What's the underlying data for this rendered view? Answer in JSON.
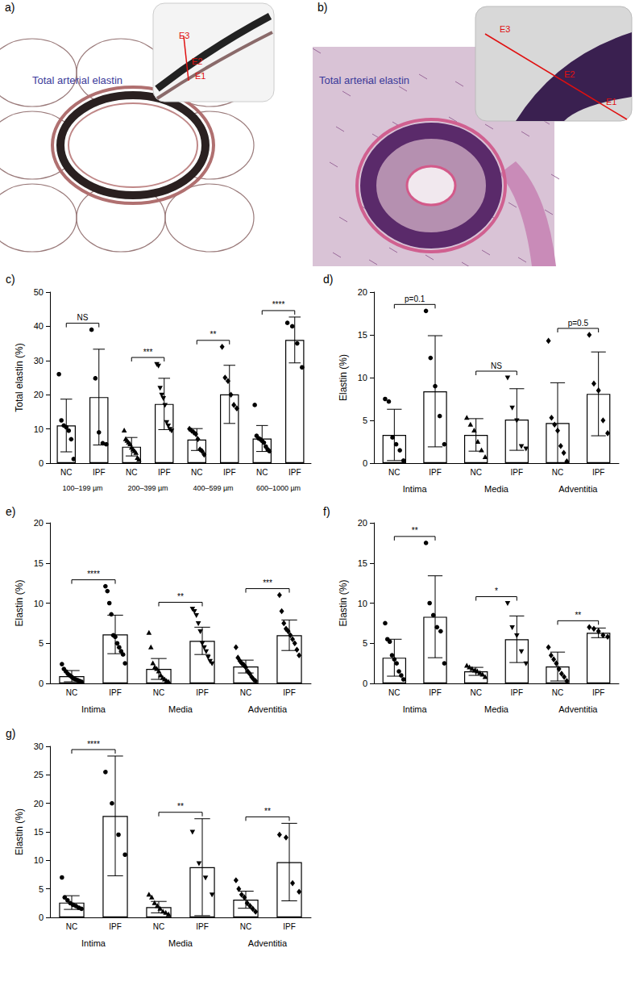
{
  "panels": [
    {
      "label": "a)",
      "caption": "Total arterial elastin",
      "inset_labels": [
        "E3",
        "E2",
        "E1"
      ]
    },
    {
      "label": "b)",
      "caption": "Total arterial elastin",
      "inset_labels": [
        "E3",
        "E2",
        "E1"
      ]
    }
  ],
  "chart_data": [
    {
      "type": "bar",
      "panel": "c)",
      "y_label": "Total elastin (%)",
      "categories": [
        "NC",
        "IPF",
        "NC",
        "IPF",
        "NC",
        "IPF",
        "NC",
        "IPF"
      ],
      "groups": [
        "100–199 µm",
        "200–399 µm",
        "400–599 µm",
        "600–1000 µm"
      ],
      "values": [
        11,
        19.3,
        4.8,
        17.3,
        6.9,
        20.1,
        7.2,
        36
      ],
      "error": [
        7.7,
        14,
        2.7,
        7.5,
        3.2,
        8.5,
        3.8,
        6.7
      ],
      "points": [
        [
          26,
          12.5,
          11,
          10.5,
          9.5,
          7,
          1.2
        ],
        [
          39,
          25,
          9,
          6,
          5.5
        ],
        [
          9.5,
          7,
          6.5,
          6,
          5.5,
          4.5,
          4,
          3.5,
          3,
          1.5,
          1
        ],
        [
          29,
          28.5,
          22,
          20,
          19,
          17,
          12,
          11,
          10,
          9.5
        ],
        [
          10,
          9.5,
          9,
          8.5,
          7,
          4,
          3.5,
          2.5
        ],
        [
          34,
          25,
          24,
          20,
          17,
          16
        ],
        [
          17,
          8,
          7.5,
          7,
          6.5,
          6,
          5,
          4,
          3.5
        ],
        [
          41,
          40,
          35,
          28
        ]
      ],
      "markers": [
        "circle",
        "circle",
        "triangle",
        "triangle-down",
        "diamond",
        "diamond",
        "circle",
        "circle"
      ],
      "significance": [
        "NS",
        "***",
        "**",
        "****"
      ],
      "color": "#ffffff",
      "ylim": [
        0,
        50
      ],
      "yticks": [
        0,
        10,
        20,
        30,
        40,
        50
      ],
      "grid": false
    },
    {
      "type": "bar",
      "panel": "d)",
      "y_label": "Elastin (%)",
      "categories": [
        "NC",
        "IPF",
        "NC",
        "IPF",
        "NC",
        "IPF"
      ],
      "groups": [
        "Intima",
        "Media",
        "Adventitia"
      ],
      "values": [
        3.3,
        8.4,
        3.3,
        5.1,
        4.7,
        8.1
      ],
      "error": [
        3,
        6.5,
        1.9,
        3.6,
        4.7,
        4.9
      ],
      "points": [
        [
          7.5,
          7.2,
          3,
          2.2,
          1.5,
          0.3
        ],
        [
          17.8,
          12.3,
          9,
          5.5,
          2.2
        ],
        [
          5.3,
          4.5,
          3.8,
          2.5,
          1.5,
          0.7
        ],
        [
          10,
          6.5,
          5,
          2,
          1.7
        ],
        [
          14.3,
          5.3,
          4.5,
          3.8,
          2,
          1.2,
          0.2
        ],
        [
          15,
          9.3,
          8.5,
          5,
          3.5
        ]
      ],
      "markers": [
        "circle",
        "circle",
        "triangle",
        "triangle-down",
        "diamond",
        "diamond"
      ],
      "significance": [
        "p=0.1",
        "NS",
        "p=0.5"
      ],
      "color": "#ffffff",
      "ylim": [
        0,
        20
      ],
      "yticks": [
        0,
        5,
        10,
        15,
        20
      ],
      "grid": false
    },
    {
      "type": "bar",
      "panel": "e)",
      "y_label": "Elastin (%)",
      "categories": [
        "NC",
        "IPF",
        "NC",
        "IPF",
        "NC",
        "IPF"
      ],
      "groups": [
        "Intima",
        "Media",
        "Adventitia"
      ],
      "values": [
        0.9,
        6.1,
        1.8,
        5.3,
        2.1,
        6
      ],
      "error": [
        0.7,
        2.4,
        1.3,
        1.7,
        0.8,
        1.9
      ],
      "points": [
        [
          2.4,
          1.8,
          1.5,
          1.2,
          1,
          0.8,
          0.6,
          0.5,
          0.4,
          0.3,
          0.2
        ],
        [
          12.1,
          11.5,
          10,
          8.6,
          6,
          5.8,
          5,
          4.5,
          4,
          3.6,
          2.5
        ],
        [
          6.3,
          4.5,
          2.5,
          2,
          1.8,
          1.5,
          1,
          0.7,
          0.5,
          0.3,
          0.2
        ],
        [
          9.3,
          9,
          8.5,
          7.5,
          6.5,
          5,
          4.5,
          4,
          3.3,
          2.8,
          2.5
        ],
        [
          4.5,
          3.2,
          2.8,
          2.5,
          2.3,
          2,
          1.5,
          1.2,
          0.8,
          0.5,
          0.3
        ],
        [
          11,
          9,
          7.5,
          6.8,
          6.5,
          6,
          5.5,
          5,
          4.2,
          3.5
        ]
      ],
      "markers": [
        "circle",
        "circle",
        "triangle",
        "triangle-down",
        "diamond",
        "diamond"
      ],
      "significance": [
        "****",
        "**",
        "***"
      ],
      "color": "#ffffff",
      "ylim": [
        0,
        20
      ],
      "yticks": [
        0,
        5,
        10,
        15,
        20
      ],
      "grid": false
    },
    {
      "type": "bar",
      "panel": "f)",
      "y_label": "Elastin (%)",
      "categories": [
        "NC",
        "IPF",
        "NC",
        "IPF",
        "NC",
        "IPF"
      ],
      "groups": [
        "Intima",
        "Media",
        "Adventitia"
      ],
      "values": [
        3.2,
        8.3,
        1.5,
        5.5,
        2.1,
        6.3
      ],
      "error": [
        2.3,
        5.1,
        0.5,
        2.9,
        1.8,
        0.6
      ],
      "points": [
        [
          7.5,
          5.5,
          5.2,
          3.5,
          3,
          2.5,
          1.5,
          1,
          0.5
        ],
        [
          17.5,
          10,
          8.5,
          7,
          6.5,
          2.5
        ],
        [
          2.2,
          2,
          1.8,
          1.6,
          1.5,
          1.3,
          1.1,
          0.8
        ],
        [
          10,
          7,
          6,
          4,
          2.5
        ],
        [
          4.5,
          3.5,
          3,
          2.5,
          1.8,
          1.2,
          0.8,
          0.3
        ],
        [
          7,
          6.8,
          6.5,
          6,
          5.8
        ]
      ],
      "markers": [
        "circle",
        "circle",
        "triangle",
        "triangle-down",
        "diamond",
        "diamond"
      ],
      "significance": [
        "**",
        "*",
        "**"
      ],
      "color": "#ffffff",
      "ylim": [
        0,
        20
      ],
      "yticks": [
        0,
        5,
        10,
        15,
        20
      ],
      "grid": false
    },
    {
      "type": "bar",
      "panel": "g)",
      "y_label": "Elastin (%)",
      "categories": [
        "NC",
        "IPF",
        "NC",
        "IPF",
        "NC",
        "IPF"
      ],
      "groups": [
        "Intima",
        "Media",
        "Adventitia"
      ],
      "values": [
        2.6,
        17.8,
        1.8,
        8.8,
        3.1,
        9.7
      ],
      "error": [
        1.2,
        10.5,
        1,
        8.5,
        1.5,
        6.8
      ],
      "points": [
        [
          7,
          3.5,
          3,
          2.5,
          2.2,
          2,
          1.7,
          1.5
        ],
        [
          25.5,
          20,
          14.5,
          11
        ],
        [
          4,
          3.5,
          2.5,
          2,
          1.5,
          1,
          0.8,
          0.5
        ],
        [
          15,
          9.5,
          7,
          4
        ],
        [
          6.5,
          5,
          4,
          3.5,
          2.5,
          2,
          1.5,
          1
        ],
        [
          14.5,
          14,
          6,
          4.5
        ]
      ],
      "markers": [
        "circle",
        "circle",
        "triangle",
        "triangle-down",
        "diamond",
        "diamond"
      ],
      "significance": [
        "****",
        "**",
        "**"
      ],
      "color": "#ffffff",
      "ylim": [
        0,
        30
      ],
      "yticks": [
        0,
        5,
        10,
        15,
        20,
        25,
        30
      ],
      "grid": false
    }
  ]
}
